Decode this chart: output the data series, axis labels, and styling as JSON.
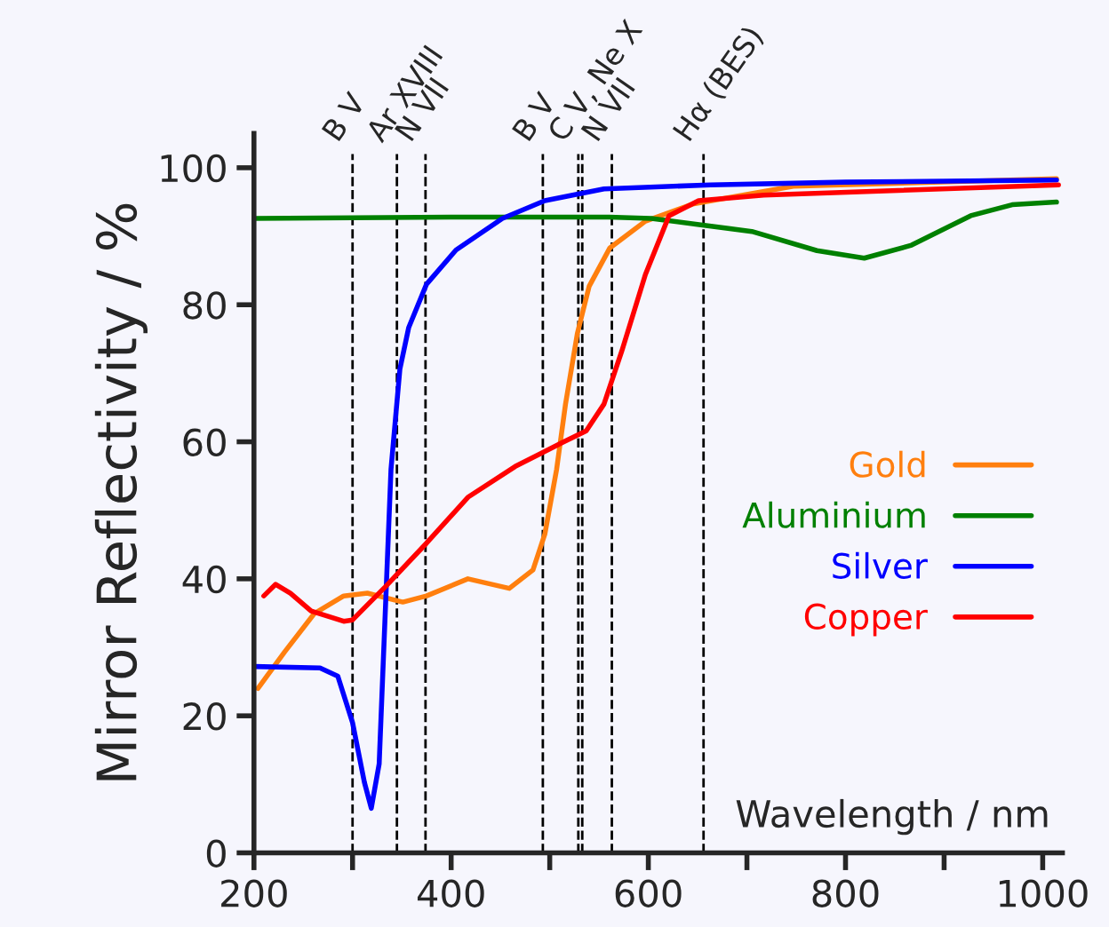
{
  "chart_data": {
    "type": "line",
    "xlabel": "Wavelength / nm",
    "ylabel": "Mirror Reflectivity / %",
    "xlim": [
      200,
      1020
    ],
    "ylim": [
      0,
      105
    ],
    "xticks": [
      200,
      {
        "value": 300,
        "label": null
      },
      400,
      {
        "value": 500,
        "label": null
      },
      600,
      {
        "value": 700,
        "label": null
      },
      800,
      {
        "value": 900,
        "label": null
      },
      1000
    ],
    "yticks": [
      0,
      20,
      40,
      60,
      80,
      100
    ],
    "grid": false,
    "legend": "right",
    "line_style": "solid",
    "marker": "none",
    "series": [
      {
        "name": "Gold",
        "color": "#ff7f0e",
        "x": [
          204,
          231,
          261,
          291,
          315,
          351,
          375,
          417,
          459,
          483,
          495,
          507,
          516,
          528,
          540,
          561,
          597,
          645,
          747,
          1014
        ],
        "values": [
          24,
          29.3,
          34.9,
          37.5,
          37.9,
          36.6,
          37.5,
          40,
          38.6,
          41.3,
          46.5,
          56,
          65.5,
          75.8,
          82.7,
          88.3,
          92.2,
          94.7,
          97.3,
          98.4
        ]
      },
      {
        "name": "Aluminium",
        "color": "#008000",
        "x": [
          200,
          300,
          400,
          500,
          560,
          603,
          705,
          771,
          819,
          867,
          927,
          969,
          1014
        ],
        "values": [
          92.6,
          92.7,
          92.8,
          92.8,
          92.8,
          92.6,
          90.7,
          87.9,
          86.8,
          88.7,
          93,
          94.6,
          95
        ]
      },
      {
        "name": "Silver",
        "color": "#0000ff",
        "x": [
          200,
          267,
          285,
          300,
          312,
          319,
          327,
          333,
          339,
          348,
          357,
          375,
          405,
          452,
          495,
          555,
          663,
          800,
          1014
        ],
        "values": [
          27.2,
          27,
          25.8,
          19,
          10.3,
          6.5,
          13,
          34.5,
          56,
          70.6,
          76.7,
          83,
          88,
          92.6,
          95.2,
          96.9,
          97.5,
          97.9,
          98.2
        ]
      },
      {
        "name": "Copper",
        "color": "#ff0000",
        "x": [
          210,
          222,
          237,
          258,
          291,
          300,
          333,
          375,
          417,
          465,
          513,
          537,
          555,
          573,
          597,
          621,
          651,
          717,
          1016
        ],
        "values": [
          37.5,
          39.2,
          37.9,
          35.3,
          33.8,
          34,
          38.8,
          45.2,
          51.9,
          56.4,
          59.9,
          61.6,
          65.5,
          73.2,
          84.4,
          93,
          95.2,
          96,
          97.5
        ]
      }
    ],
    "ref_lines": [
      {
        "axis": "x",
        "value": 300,
        "label": "B V",
        "line_style": "dashed",
        "color": "#000000"
      },
      {
        "axis": "x",
        "value": 345,
        "label": "Ar XVIII",
        "line_style": "dashed",
        "color": "#000000"
      },
      {
        "axis": "x",
        "value": 374,
        "label": "N VII",
        "line_style": "dashed",
        "color": "#000000"
      },
      {
        "axis": "x",
        "value": 493,
        "label": "B V",
        "line_style": "dashed",
        "color": "#000000"
      },
      {
        "axis": "x",
        "value": 529,
        "label": "C V, Ne X",
        "line_style": "dashed",
        "color": "#000000"
      },
      {
        "axis": "x",
        "value": 533,
        "label": null,
        "line_style": "dashed",
        "color": "#000000"
      },
      {
        "axis": "x",
        "value": 563,
        "label": "N VII",
        "line_style": "dashed",
        "color": "#000000"
      },
      {
        "axis": "x",
        "value": 656,
        "label": "Hα (BES)",
        "line_style": "dashed",
        "color": "#000000"
      }
    ]
  }
}
